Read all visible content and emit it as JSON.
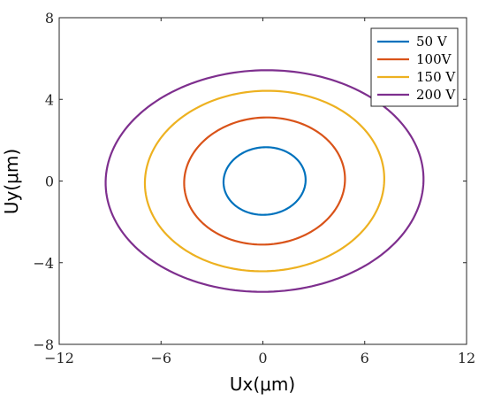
{
  "chart_data": {
    "type": "line",
    "title": "",
    "xlabel": "Ux(μm)",
    "ylabel": "Uy(μm)",
    "xlim": [
      -12,
      12
    ],
    "ylim": [
      -8,
      8
    ],
    "xticks": [
      -12,
      -6,
      0,
      6,
      12
    ],
    "xtick_labels": [
      "−12",
      "−6",
      "0",
      "6",
      "12"
    ],
    "yticks": [
      -8,
      -4,
      0,
      4,
      8
    ],
    "ytick_labels": [
      "−8",
      "−4",
      "0",
      "4",
      "8"
    ],
    "grid": false,
    "legend_position": "top-right",
    "series": [
      {
        "name": "50 V",
        "color": "#0072BD",
        "center": [
          0.1,
          0.0
        ],
        "semi_axis_x": 2.4,
        "semi_axis_y": 1.65,
        "tilt": 0.3
      },
      {
        "name": "100V",
        "color": "#D95319",
        "center": [
          0.1,
          0.0
        ],
        "semi_axis_x": 4.7,
        "semi_axis_y": 3.1,
        "tilt": 0.6
      },
      {
        "name": "150 V",
        "color": "#EDB120",
        "center": [
          0.1,
          0.0
        ],
        "semi_axis_x": 7.0,
        "semi_axis_y": 4.4,
        "tilt": 0.85
      },
      {
        "name": "200 V",
        "color": "#7E2F8E",
        "center": [
          0.1,
          0.0
        ],
        "semi_axis_x": 9.3,
        "semi_axis_y": 5.4,
        "tilt": 1.1
      }
    ]
  }
}
